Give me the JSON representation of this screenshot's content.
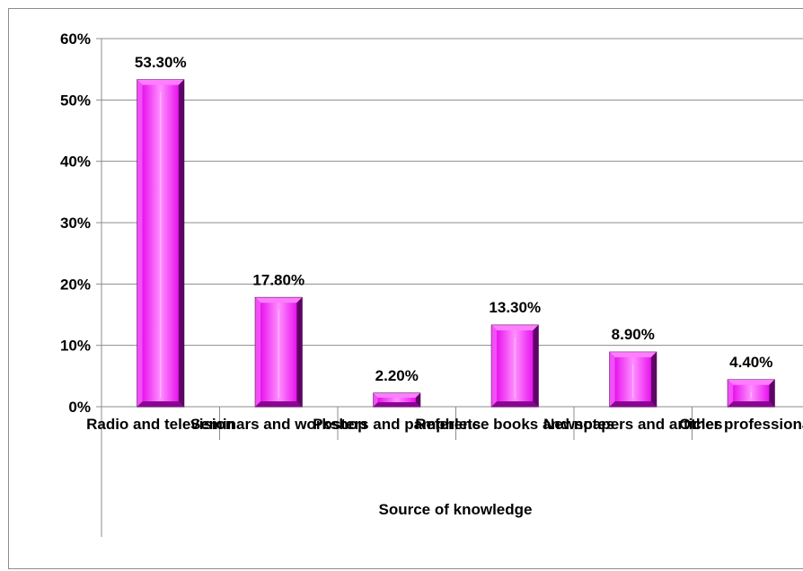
{
  "chart_data": {
    "type": "bar",
    "title": "",
    "xlabel": "Source of knowledge",
    "ylabel": "",
    "categories": [
      "Radio and television",
      "Seminars and workshop",
      "Posters and pamphlets",
      "Reference books and notes",
      "Newspapers and articles",
      "Other professionals"
    ],
    "values": [
      53.3,
      17.8,
      2.2,
      13.3,
      8.9,
      4.4
    ],
    "data_labels": [
      "53.30%",
      "17.80%",
      "2.20%",
      "13.30%",
      "8.90%",
      "4.40%"
    ],
    "y_ticks": [
      0,
      10,
      20,
      30,
      40,
      50,
      60
    ],
    "y_tick_labels": [
      "0%",
      "10%",
      "20%",
      "30%",
      "40%",
      "50%",
      "60%"
    ],
    "ylim": [
      0,
      60
    ],
    "grid": true,
    "legend": "none",
    "colors": {
      "bar_face": "#e010e6",
      "bar_light": "#ff7dff",
      "bar_dark": "#5e0466",
      "bar_edge": "#3c0040",
      "grid": "#8c8c8c",
      "axis": "#8c8c8c",
      "text": "#000000"
    }
  }
}
